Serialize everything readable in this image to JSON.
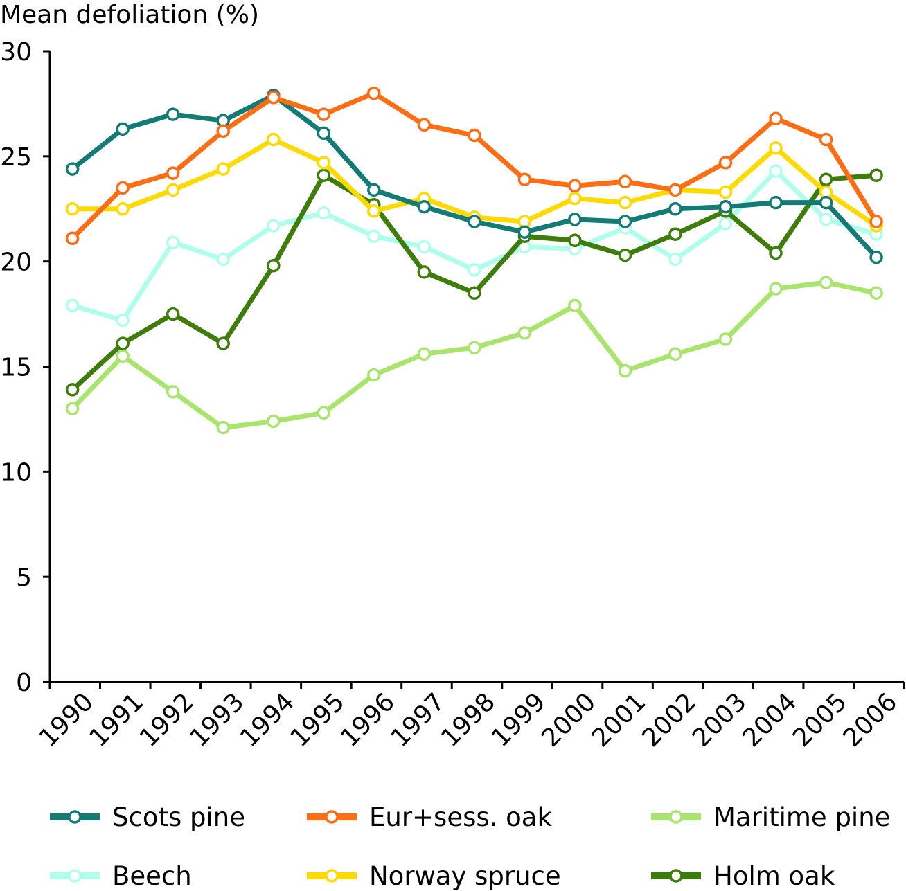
{
  "chart_data": {
    "type": "line",
    "title": "",
    "ylabel": "Mean defoliation (%)",
    "xlabel": "",
    "ylim": [
      0,
      30
    ],
    "yticks": [
      0,
      5,
      10,
      15,
      20,
      25,
      30
    ],
    "categories": [
      "1990",
      "1991",
      "1992",
      "1993",
      "1994",
      "1995",
      "1996",
      "1997",
      "1998",
      "1999",
      "2000",
      "2001",
      "2002",
      "2003",
      "2004",
      "2005",
      "2006"
    ],
    "grid": false,
    "legend_position": "bottom",
    "series": [
      {
        "name": "Scots pine",
        "color": "#137A74",
        "marker": "circle-open",
        "values": [
          24.4,
          26.3,
          27.0,
          26.7,
          27.9,
          26.1,
          23.4,
          22.6,
          21.9,
          21.4,
          22.0,
          21.9,
          22.5,
          22.6,
          22.8,
          22.8,
          20.2
        ]
      },
      {
        "name": "Eur+sess. oak",
        "color": "#FF6E14",
        "marker": "circle-open",
        "values": [
          21.1,
          23.5,
          24.2,
          26.2,
          27.8,
          27.0,
          28.0,
          26.5,
          26.0,
          23.9,
          23.6,
          23.8,
          23.4,
          24.7,
          26.8,
          25.8,
          21.9
        ]
      },
      {
        "name": "Maritime pine",
        "color": "#A9E46E",
        "marker": "circle-open",
        "values": [
          13.0,
          15.5,
          13.8,
          12.1,
          12.4,
          12.8,
          14.6,
          15.6,
          15.9,
          16.6,
          17.9,
          14.8,
          15.6,
          16.3,
          18.7,
          19.0,
          18.5
        ]
      },
      {
        "name": "Beech",
        "color": "#B0FFEA",
        "marker": "circle-open",
        "values": [
          17.9,
          17.2,
          20.9,
          20.1,
          21.7,
          22.3,
          21.2,
          20.7,
          19.6,
          20.7,
          20.6,
          21.6,
          20.1,
          21.8,
          24.3,
          22.0,
          21.3
        ]
      },
      {
        "name": "Norway spruce",
        "color": "#FFDA00",
        "marker": "circle-open",
        "values": [
          22.5,
          22.5,
          23.4,
          24.4,
          25.8,
          24.7,
          22.4,
          23.0,
          22.1,
          21.9,
          23.0,
          22.8,
          23.4,
          23.3,
          25.4,
          23.3,
          21.7
        ]
      },
      {
        "name": "Holm oak",
        "color": "#3E7C0C",
        "marker": "circle-open",
        "values": [
          13.9,
          16.1,
          17.5,
          16.1,
          19.8,
          24.1,
          22.7,
          19.5,
          18.5,
          21.2,
          21.0,
          20.3,
          21.3,
          22.4,
          20.4,
          23.9,
          24.1
        ]
      }
    ]
  }
}
